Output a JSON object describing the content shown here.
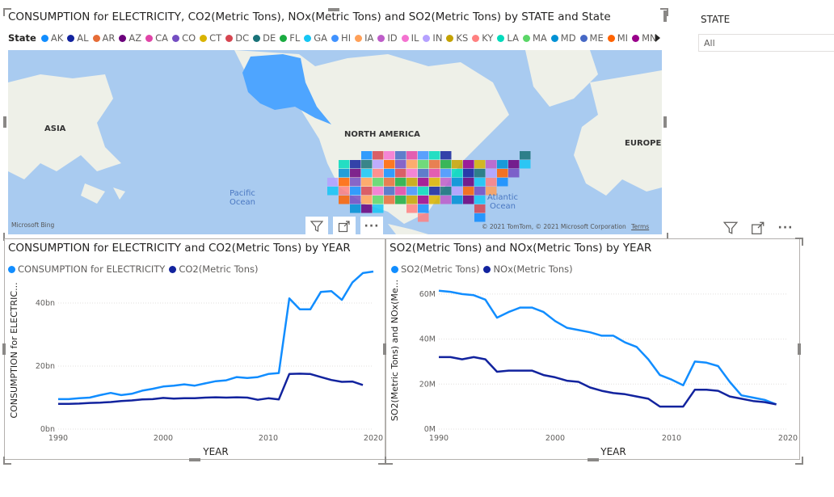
{
  "map_visual": {
    "title": "CONSUMPTION for ELECTRICITY, CO2(Metric Tons), NOx(Metric Tons) and SO2(Metric Tons) by STATE and State",
    "legend_title": "State",
    "legend_items": [
      {
        "label": "AK",
        "color": "#118dff"
      },
      {
        "label": "AL",
        "color": "#12239e"
      },
      {
        "label": "AR",
        "color": "#e66c37"
      },
      {
        "label": "AZ",
        "color": "#6b007b"
      },
      {
        "label": "CA",
        "color": "#e044a7"
      },
      {
        "label": "CO",
        "color": "#744ec2"
      },
      {
        "label": "CT",
        "color": "#d9b300"
      },
      {
        "label": "DC",
        "color": "#d64550"
      },
      {
        "label": "DE",
        "color": "#197278"
      },
      {
        "label": "FL",
        "color": "#1aab40"
      },
      {
        "label": "GA",
        "color": "#15c6f4"
      },
      {
        "label": "HI",
        "color": "#4092ff"
      },
      {
        "label": "IA",
        "color": "#ffa058"
      },
      {
        "label": "ID",
        "color": "#be5dc9"
      },
      {
        "label": "IL",
        "color": "#f472d0"
      },
      {
        "label": "IN",
        "color": "#b5a1ff"
      },
      {
        "label": "KS",
        "color": "#c4a200"
      },
      {
        "label": "KY",
        "color": "#ff8080"
      },
      {
        "label": "LA",
        "color": "#00dbbc"
      },
      {
        "label": "MA",
        "color": "#5bd667"
      },
      {
        "label": "MD",
        "color": "#0091d5"
      },
      {
        "label": "ME",
        "color": "#4668c5"
      },
      {
        "label": "MI",
        "color": "#ff6300"
      },
      {
        "label": "MN",
        "color": "#99008a"
      }
    ],
    "map_labels": {
      "asia": "ASIA",
      "north_america": "NORTH AMERICA",
      "europe": "EUROPE",
      "pacific": "Pacific Ocean",
      "atlantic": "Atlantic Ocean"
    },
    "attribution": "© 2021 TomTom, © 2021 Microsoft Corporation",
    "terms": "Terms",
    "bing": "Microsoft Bing",
    "legend_next_icon": "triangle-right-icon"
  },
  "toolbar_icons": [
    "filter-icon",
    "focus-mode-icon",
    "more-options-icon"
  ],
  "slicer": {
    "title": "STATE",
    "value": "All"
  },
  "chart_data": [
    {
      "type": "line",
      "title": "CONSUMPTION for ELECTRICITY and CO2(Metric Tons) by YEAR",
      "xlabel": "YEAR",
      "ylabel": "CONSUMPTION for ELECTRIC...",
      "x": [
        1990,
        1991,
        1992,
        1993,
        1994,
        1995,
        1996,
        1997,
        1998,
        1999,
        2000,
        2001,
        2002,
        2003,
        2004,
        2005,
        2006,
        2007,
        2008,
        2009,
        2010,
        2011,
        2012,
        2013,
        2014,
        2015,
        2016,
        2017,
        2018,
        2019,
        2020
      ],
      "series": [
        {
          "name": "CONSUMPTION for ELECTRICITY",
          "color": "#118dff",
          "values": [
            9.5,
            9.5,
            9.8,
            10,
            10.8,
            11.5,
            10.8,
            11.2,
            12.2,
            12.8,
            13.5,
            13.8,
            14.2,
            13.8,
            14.5,
            15.2,
            15.5,
            16.5,
            16.2,
            16.5,
            17.5,
            17.8,
            41.5,
            38,
            38,
            43.5,
            43.8,
            41,
            46.5,
            49.5,
            50
          ]
        },
        {
          "name": "CO2(Metric Tons)",
          "color": "#12239e",
          "values": [
            8,
            8,
            8.1,
            8.3,
            8.4,
            8.6,
            8.9,
            9.1,
            9.4,
            9.5,
            9.9,
            9.7,
            9.8,
            9.8,
            10,
            10.1,
            10,
            10.1,
            10,
            9.3,
            9.8,
            9.4,
            17.5,
            17.6,
            17.5,
            16.5,
            15.6,
            15,
            15.1,
            14,
            null
          ]
        }
      ],
      "xticks": [
        "1990",
        "2000",
        "2010",
        "2020"
      ],
      "yticks": [
        "0bn",
        "20bn",
        "40bn"
      ],
      "ylim": [
        0,
        50
      ],
      "xlim": [
        1990,
        2020
      ]
    },
    {
      "type": "line",
      "title": "SO2(Metric Tons) and NOx(Metric Tons) by YEAR",
      "xlabel": "YEAR",
      "ylabel": "SO2(Metric Tons) and NOx(Me...",
      "x": [
        1990,
        1991,
        1992,
        1993,
        1994,
        1995,
        1996,
        1997,
        1998,
        1999,
        2000,
        2001,
        2002,
        2003,
        2004,
        2005,
        2006,
        2007,
        2008,
        2009,
        2010,
        2011,
        2012,
        2013,
        2014,
        2015,
        2016,
        2017,
        2018,
        2019
      ],
      "series": [
        {
          "name": "SO2(Metric Tons)",
          "color": "#118dff",
          "values": [
            61.5,
            61,
            60,
            59.5,
            57.5,
            49.5,
            52,
            54,
            54,
            52,
            48,
            45,
            44,
            43,
            41.5,
            41.5,
            38.5,
            36.5,
            31,
            24,
            22,
            19.5,
            30,
            29.5,
            28,
            21,
            15,
            14,
            13,
            11
          ]
        },
        {
          "name": "NOx(Metric Tons)",
          "color": "#12239e",
          "values": [
            32,
            32,
            31,
            32,
            31,
            25.5,
            26,
            26,
            26,
            24,
            23,
            21.5,
            21,
            18.5,
            17,
            16,
            15.5,
            14.5,
            13.5,
            10,
            10,
            10,
            17.5,
            17.5,
            17,
            14.5,
            13.5,
            12.5,
            12,
            11
          ]
        }
      ],
      "xticks": [
        "1990",
        "2000",
        "2010",
        "2020"
      ],
      "yticks": [
        "0M",
        "20M",
        "40M",
        "60M"
      ],
      "ylim": [
        0,
        70
      ],
      "xlim": [
        1990,
        2020
      ]
    }
  ]
}
